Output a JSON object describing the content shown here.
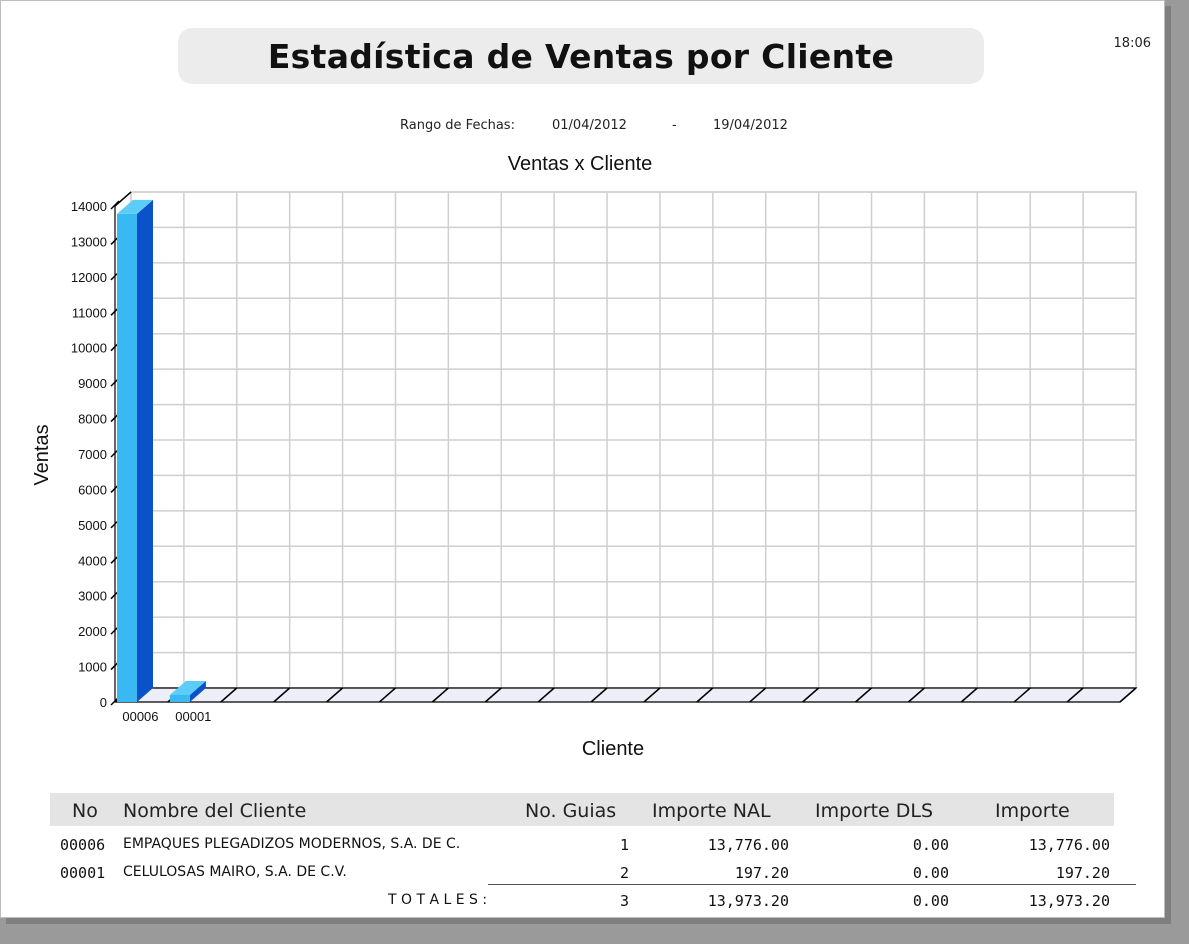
{
  "report": {
    "title": "Estadística de Ventas por Cliente",
    "time": "18:06",
    "range_label": "Rango de Fechas:",
    "date_from": "01/04/2012",
    "range_sep": "-",
    "date_to": "19/04/2012"
  },
  "chart_data": {
    "type": "bar",
    "title": "Ventas x Cliente",
    "xlabel": "Cliente",
    "ylabel": "Ventas",
    "categories": [
      "00006",
      "00001"
    ],
    "values": [
      13776.0,
      197.2
    ],
    "ylim": [
      0,
      14000
    ],
    "yticks": [
      0,
      1000,
      2000,
      3000,
      4000,
      5000,
      6000,
      7000,
      8000,
      9000,
      10000,
      11000,
      12000,
      13000,
      14000
    ],
    "grid": true,
    "style": "3d",
    "colors": {
      "bar_front": "#39b8f2",
      "bar_side": "#0a52c9",
      "bar_top": "#5ccdf8",
      "grid": "#cfcfcf",
      "floor": "#eeeef8"
    }
  },
  "table": {
    "headers": {
      "no": "No",
      "name": "Nombre del Cliente",
      "guias": "No. Guias",
      "nal": "Importe NAL",
      "dls": "Importe DLS",
      "importe": "Importe"
    },
    "rows": [
      {
        "no": "00006",
        "name": "EMPAQUES PLEGADIZOS MODERNOS, S.A. DE C.",
        "guias": "1",
        "nal": "13,776.00",
        "dls": "0.00",
        "importe": "13,776.00"
      },
      {
        "no": "00001",
        "name": "CELULOSAS MAIRO, S.A. DE C.V.",
        "guias": "2",
        "nal": "197.20",
        "dls": "0.00",
        "importe": "197.20"
      }
    ],
    "totals": {
      "label": "T O T A L E S :",
      "guias": "3",
      "nal": "13,973.20",
      "dls": "0.00",
      "importe": "13,973.20"
    }
  }
}
